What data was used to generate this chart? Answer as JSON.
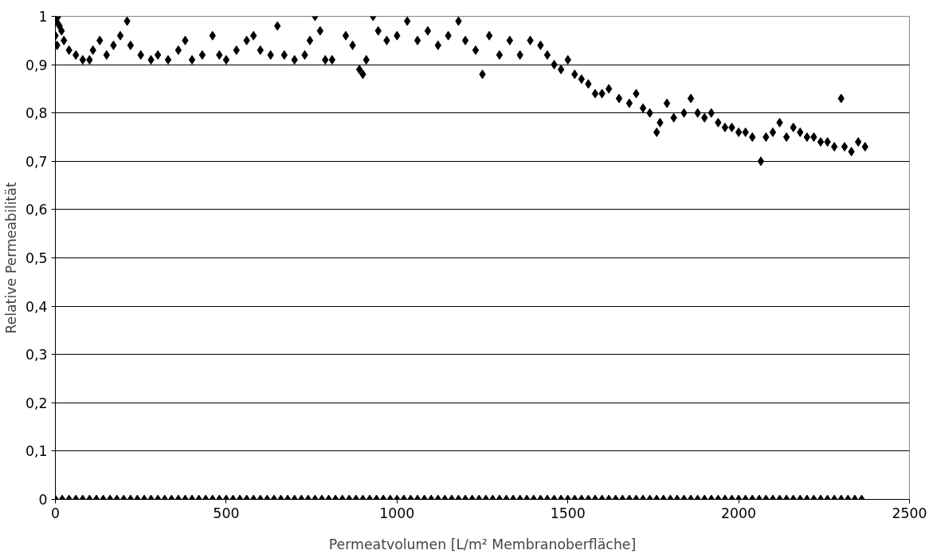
{
  "chart_data": {
    "type": "scatter",
    "xlabel": "Permeatvolumen [L/m² Membranoberfläche]",
    "ylabel": "Relative Permeabilität",
    "xlim": [
      0,
      2500
    ],
    "ylim": [
      0,
      1
    ],
    "xticks": [
      0,
      500,
      1000,
      1500,
      2000,
      2500
    ],
    "yticks": [
      0,
      {
        "value": 0.1,
        "label": "0,1"
      },
      {
        "value": 0.2,
        "label": "0,2"
      },
      {
        "value": 0.3,
        "label": "0,3"
      },
      {
        "value": 0.4,
        "label": "0,4"
      },
      {
        "value": 0.5,
        "label": "0,5"
      },
      {
        "value": 0.6,
        "label": "0,6"
      },
      {
        "value": 0.7,
        "label": "0,7"
      },
      {
        "value": 0.8,
        "label": "0,8"
      },
      {
        "value": 0.9,
        "label": "0,9"
      },
      1
    ],
    "grid": "y",
    "marker": "diamond",
    "series": [
      {
        "color": "#000000",
        "x": [
          0,
          3,
          5,
          8,
          12,
          18,
          25,
          40,
          60,
          80,
          100,
          110,
          130,
          150,
          170,
          190,
          210,
          220,
          250,
          280,
          300,
          330,
          360,
          380,
          400,
          430,
          460,
          480,
          500,
          530,
          560,
          580,
          600,
          630,
          650,
          670,
          700,
          730,
          745,
          760,
          775,
          790,
          810,
          850,
          870,
          890,
          900,
          910,
          930,
          945,
          970,
          1000,
          1030,
          1060,
          1090,
          1120,
          1150,
          1180,
          1200,
          1230,
          1250,
          1270,
          1300,
          1330,
          1360,
          1390,
          1420,
          1440,
          1460,
          1480,
          1500,
          1520,
          1540,
          1560,
          1580,
          1600,
          1620,
          1650,
          1680,
          1700,
          1720,
          1740,
          1760,
          1770,
          1790,
          1810,
          1840,
          1860,
          1880,
          1900,
          1920,
          1940,
          1960,
          1980,
          2000,
          2020,
          2040,
          2065,
          2080,
          2100,
          2120,
          2140,
          2160,
          2180,
          2200,
          2220,
          2240,
          2260,
          2280,
          2300,
          2310,
          2330,
          2350,
          2370
        ],
        "values": [
          0.96,
          0.99,
          0.94,
          1.0,
          0.98,
          0.97,
          0.95,
          0.93,
          0.92,
          0.91,
          0.91,
          0.93,
          0.95,
          0.92,
          0.94,
          0.96,
          0.99,
          0.94,
          0.92,
          0.91,
          0.92,
          0.91,
          0.93,
          0.95,
          0.91,
          0.92,
          0.96,
          0.92,
          0.91,
          0.93,
          0.95,
          0.96,
          0.93,
          0.92,
          0.98,
          0.92,
          0.91,
          0.92,
          0.95,
          1.0,
          0.97,
          0.91,
          0.91,
          0.96,
          0.94,
          0.89,
          0.88,
          0.91,
          1.0,
          0.97,
          0.95,
          0.96,
          0.99,
          0.95,
          0.97,
          0.94,
          0.96,
          0.99,
          0.95,
          0.93,
          0.88,
          0.96,
          0.92,
          0.95,
          0.92,
          0.95,
          0.94,
          0.92,
          0.9,
          0.89,
          0.91,
          0.88,
          0.87,
          0.86,
          0.84,
          0.84,
          0.85,
          0.83,
          0.82,
          0.84,
          0.81,
          0.8,
          0.76,
          0.78,
          0.82,
          0.79,
          0.8,
          0.83,
          0.8,
          0.79,
          0.8,
          0.78,
          0.77,
          0.77,
          0.76,
          0.76,
          0.75,
          0.7,
          0.75,
          0.76,
          0.78,
          0.75,
          0.77,
          0.76,
          0.75,
          0.75,
          0.74,
          0.74,
          0.73,
          0.83,
          0.73,
          0.72,
          0.74,
          0.73
        ]
      },
      {
        "color": "#000000",
        "x": [
          0,
          20,
          40,
          60,
          80,
          100,
          120,
          140,
          160,
          180,
          200,
          220,
          240,
          260,
          280,
          300,
          320,
          340,
          360,
          380,
          400,
          420,
          440,
          460,
          480,
          500,
          520,
          540,
          560,
          580,
          600,
          620,
          640,
          660,
          680,
          700,
          720,
          740,
          760,
          780,
          800,
          820,
          840,
          860,
          880,
          900,
          920,
          940,
          960,
          980,
          1000,
          1020,
          1040,
          1060,
          1080,
          1100,
          1120,
          1140,
          1160,
          1180,
          1200,
          1220,
          1240,
          1260,
          1280,
          1300,
          1320,
          1340,
          1360,
          1380,
          1400,
          1420,
          1440,
          1460,
          1480,
          1500,
          1520,
          1540,
          1560,
          1580,
          1600,
          1620,
          1640,
          1660,
          1680,
          1700,
          1720,
          1740,
          1760,
          1780,
          1800,
          1820,
          1840,
          1860,
          1880,
          1900,
          1920,
          1940,
          1960,
          1980,
          2000,
          2020,
          2040,
          2060,
          2080,
          2100,
          2120,
          2140,
          2160,
          2180,
          2200,
          2220,
          2240,
          2260,
          2280,
          2300,
          2320,
          2340,
          2360
        ],
        "values": [
          0,
          0,
          0,
          0,
          0,
          0,
          0,
          0,
          0,
          0,
          0,
          0,
          0,
          0,
          0,
          0,
          0,
          0,
          0,
          0,
          0,
          0,
          0,
          0,
          0,
          0,
          0,
          0,
          0,
          0,
          0,
          0,
          0,
          0,
          0,
          0,
          0,
          0,
          0,
          0,
          0,
          0,
          0,
          0,
          0,
          0,
          0,
          0,
          0,
          0,
          0,
          0,
          0,
          0,
          0,
          0,
          0,
          0,
          0,
          0,
          0,
          0,
          0,
          0,
          0,
          0,
          0,
          0,
          0,
          0,
          0,
          0,
          0,
          0,
          0,
          0,
          0,
          0,
          0,
          0,
          0,
          0,
          0,
          0,
          0,
          0,
          0,
          0,
          0,
          0,
          0,
          0,
          0,
          0,
          0,
          0,
          0,
          0,
          0,
          0,
          0,
          0,
          0,
          0,
          0,
          0,
          0,
          0,
          0,
          0,
          0,
          0,
          0,
          0,
          0,
          0,
          0,
          0,
          0
        ]
      }
    ]
  }
}
